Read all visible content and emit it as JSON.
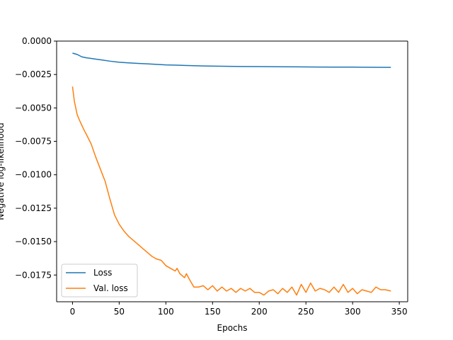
{
  "chart_data": {
    "type": "line",
    "title": "",
    "xlabel": "Epochs",
    "ylabel": "Negative log-likelihood",
    "xlim": [
      -17,
      359
    ],
    "ylim": [
      -0.0195,
      0.0
    ],
    "xticks": [
      0,
      50,
      100,
      150,
      200,
      250,
      300,
      350
    ],
    "xtick_labels": [
      "0",
      "50",
      "100",
      "150",
      "200",
      "250",
      "300",
      "350"
    ],
    "yticks": [
      0.0,
      -0.0025,
      -0.005,
      -0.0075,
      -0.01,
      -0.0125,
      -0.015,
      -0.0175
    ],
    "ytick_labels": [
      "0.0000",
      "−0.0025",
      "−0.0050",
      "−0.0075",
      "−0.0100",
      "−0.0125",
      "−0.0150",
      "−0.0175"
    ],
    "grid": false,
    "legend": "lower-left",
    "colors": {
      "loss": "#1f77b4",
      "val_loss": "#ff7f0e"
    },
    "series": [
      {
        "name": "Loss",
        "x": [
          0,
          5,
          10,
          15,
          20,
          25,
          30,
          40,
          50,
          60,
          70,
          80,
          90,
          100,
          120,
          140,
          160,
          180,
          200,
          220,
          240,
          260,
          280,
          300,
          320,
          341
        ],
        "y": [
          -0.0009,
          -0.001,
          -0.00118,
          -0.00125,
          -0.0013,
          -0.00135,
          -0.0014,
          -0.0015,
          -0.00158,
          -0.00163,
          -0.00167,
          -0.0017,
          -0.00174,
          -0.00178,
          -0.00182,
          -0.00186,
          -0.00188,
          -0.0019,
          -0.00191,
          -0.00192,
          -0.00193,
          -0.00194,
          -0.00195,
          -0.00195,
          -0.00196,
          -0.00197
        ]
      },
      {
        "name": "Val. loss",
        "x": [
          0,
          2,
          5,
          8,
          12,
          15,
          20,
          25,
          30,
          35,
          40,
          45,
          50,
          55,
          60,
          65,
          70,
          75,
          80,
          85,
          90,
          95,
          100,
          105,
          110,
          112,
          115,
          120,
          122,
          125,
          130,
          135,
          140,
          145,
          150,
          155,
          160,
          165,
          170,
          175,
          180,
          185,
          190,
          195,
          200,
          205,
          210,
          215,
          220,
          225,
          230,
          235,
          240,
          245,
          250,
          255,
          260,
          265,
          270,
          275,
          280,
          285,
          290,
          295,
          300,
          305,
          310,
          315,
          320,
          325,
          330,
          335,
          341
        ],
        "y": [
          -0.0034,
          -0.0045,
          -0.0055,
          -0.006,
          -0.0066,
          -0.007,
          -0.0077,
          -0.0087,
          -0.0096,
          -0.0105,
          -0.0118,
          -0.013,
          -0.0137,
          -0.0142,
          -0.0146,
          -0.0149,
          -0.0152,
          -0.0155,
          -0.0158,
          -0.0161,
          -0.0163,
          -0.0164,
          -0.0168,
          -0.017,
          -0.0172,
          -0.017,
          -0.0174,
          -0.0177,
          -0.0174,
          -0.0178,
          -0.0184,
          -0.0184,
          -0.0183,
          -0.0186,
          -0.0183,
          -0.0187,
          -0.0184,
          -0.0187,
          -0.0185,
          -0.0188,
          -0.0185,
          -0.0187,
          -0.0185,
          -0.0188,
          -0.0188,
          -0.019,
          -0.0187,
          -0.0186,
          -0.0189,
          -0.0185,
          -0.0188,
          -0.0184,
          -0.019,
          -0.0182,
          -0.0188,
          -0.0181,
          -0.0187,
          -0.0185,
          -0.0186,
          -0.0188,
          -0.0184,
          -0.0188,
          -0.0182,
          -0.0188,
          -0.0185,
          -0.0189,
          -0.0186,
          -0.0187,
          -0.0188,
          -0.0184,
          -0.0186,
          -0.0186,
          -0.0187
        ]
      }
    ]
  }
}
